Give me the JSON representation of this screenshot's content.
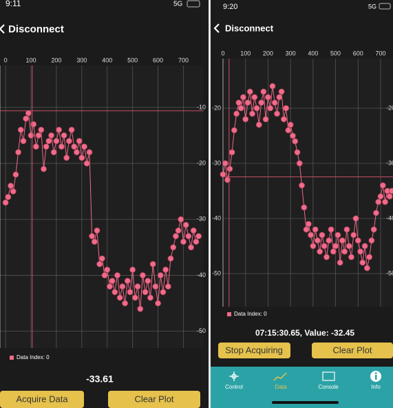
{
  "screens": [
    {
      "status": {
        "time": "9:11",
        "network": "5G"
      },
      "nav": {
        "back_label": "Disconnect"
      },
      "chart_data": {
        "type": "scatter",
        "x": [
          0,
          10,
          20,
          30,
          40,
          50,
          60,
          70,
          80,
          90,
          100,
          110,
          120,
          130,
          140,
          150,
          160,
          170,
          180,
          190,
          200,
          210,
          220,
          230,
          240,
          250,
          260,
          270,
          280,
          290,
          300,
          310,
          320,
          330,
          340,
          350,
          360,
          370,
          380,
          390,
          400,
          410,
          420,
          430,
          440,
          450,
          460,
          470,
          480,
          490,
          500,
          510,
          520,
          530,
          540,
          550,
          560,
          570,
          580,
          590,
          600,
          610,
          620,
          630,
          640,
          650,
          660,
          670,
          680,
          690,
          700,
          710,
          720,
          730,
          740,
          750,
          760
        ],
        "series": [
          {
            "name": "Data Index: 0",
            "color": "#f06b8a",
            "values": [
              -27,
              -26,
              -24,
              -25,
              -22,
              -18,
              -14,
              -16,
              -12,
              -11,
              -15,
              -13,
              -17,
              -15,
              -14,
              -21,
              -17,
              -16,
              -15,
              -18,
              -16,
              -14,
              -17,
              -15,
              -19,
              -16,
              -14,
              -17,
              -18,
              -16,
              -19,
              -17,
              -20,
              -18,
              -33,
              -34,
              -32,
              -38,
              -37,
              -40,
              -39,
              -42,
              -41,
              -43,
              -40,
              -44,
              -42,
              -45,
              -41,
              -43,
              -39,
              -44,
              -42,
              -46,
              -40,
              -43,
              -41,
              -44,
              -38,
              -42,
              -45,
              -40,
              -43,
              -39,
              -42,
              -37,
              -35,
              -33,
              -32,
              -30,
              -34,
              -31,
              -33,
              -35,
              -32,
              -34,
              -33
            ]
          }
        ],
        "xlim": [
          -22,
          780
        ],
        "ylim": [
          -53,
          -2.5
        ],
        "xticks": [
          0,
          100,
          200,
          300,
          400,
          500,
          600,
          700
        ],
        "yticks": [
          -10,
          -20,
          -30,
          -40,
          -50
        ],
        "ytick_sides": [
          "right"
        ],
        "grid": true,
        "cursor": {
          "x": 105,
          "y": -10.6
        }
      },
      "readout": "-33.61",
      "buttons": [
        "Acquire Data",
        "Clear Plot"
      ]
    },
    {
      "status": {
        "time": "9:20",
        "network": "5G"
      },
      "nav": {
        "back_label": "Disconnect"
      },
      "chart_data": {
        "type": "scatter",
        "x": [
          0,
          10,
          20,
          30,
          40,
          50,
          60,
          70,
          80,
          90,
          100,
          110,
          120,
          130,
          140,
          150,
          160,
          170,
          180,
          190,
          200,
          210,
          220,
          230,
          240,
          250,
          260,
          270,
          280,
          290,
          300,
          310,
          320,
          330,
          340,
          350,
          360,
          370,
          380,
          390,
          400,
          410,
          420,
          430,
          440,
          450,
          460,
          470,
          480,
          490,
          500,
          510,
          520,
          530,
          540,
          550,
          560,
          570,
          580,
          590,
          600,
          610,
          620,
          630,
          640,
          650,
          660,
          670,
          680,
          690,
          700,
          710,
          720,
          730,
          740,
          750
        ],
        "series": [
          {
            "name": "Data Index: 0",
            "color": "#f06b8a",
            "values": [
              -32,
              -30,
              -33,
              -31,
              -28,
              -24,
              -21,
              -19,
              -20,
              -18,
              -22,
              -19,
              -17,
              -21,
              -18,
              -20,
              -23,
              -19,
              -17,
              -22,
              -18,
              -20,
              -16,
              -19,
              -21,
              -18,
              -17,
              -22,
              -20,
              -24,
              -23,
              -25,
              -26,
              -28,
              -30,
              -34,
              -38,
              -42,
              -41,
              -43,
              -45,
              -42,
              -44,
              -46,
              -43,
              -45,
              -47,
              -44,
              -42,
              -46,
              -45,
              -43,
              -48,
              -44,
              -46,
              -42,
              -45,
              -47,
              -43,
              -40,
              -44,
              -46,
              -48,
              -45,
              -49,
              -47,
              -44,
              -42,
              -39,
              -37,
              -36,
              -34,
              -37,
              -35,
              -36,
              -35
            ]
          }
        ],
        "xlim": [
          0,
          755
        ],
        "ylim": [
          -56,
          -11
        ],
        "xticks": [
          0,
          100,
          200,
          300,
          400,
          500,
          600,
          700
        ],
        "yticks": [
          -20,
          -30,
          -40,
          -50
        ],
        "ytick_sides": [
          "left",
          "right"
        ],
        "grid": true,
        "cursor": {
          "x": 27,
          "y": -32.45
        }
      },
      "readout": "07:15:30.65, Value: -32.45",
      "buttons": [
        "Stop Acquiring",
        "Clear Plot"
      ],
      "tabs": [
        "Control",
        "Data",
        "Console",
        "Info"
      ]
    }
  ]
}
